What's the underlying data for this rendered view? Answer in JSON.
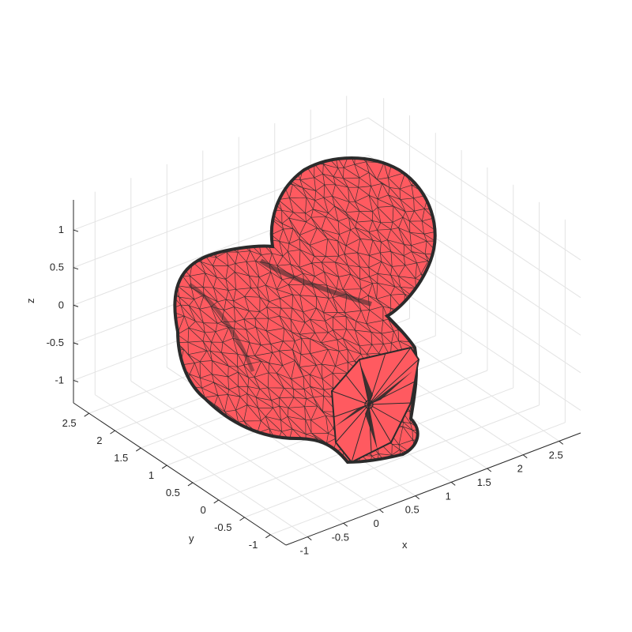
{
  "chart_data": {
    "type": "surface3d",
    "title": "",
    "xlabel": "x",
    "ylabel": "y",
    "zlabel": "z",
    "xlim": [
      -1.3,
      2.8
    ],
    "ylim": [
      -1.3,
      2.8
    ],
    "zlim": [
      -1.3,
      1.4
    ],
    "xticks": [
      -1,
      -0.5,
      0,
      0.5,
      1,
      1.5,
      2,
      2.5
    ],
    "yticks": [
      -1,
      -0.5,
      0,
      0.5,
      1,
      1.5,
      2,
      2.5
    ],
    "zticks": [
      -1,
      -0.5,
      0,
      0.5,
      1
    ],
    "xtick_labels": [
      "-1",
      "-0.5",
      "0",
      "0.5",
      "1",
      "1.5",
      "2",
      "2.5"
    ],
    "ytick_labels": [
      "-1",
      "-0.5",
      "0",
      "0.5",
      "1",
      "1.5",
      "2",
      "2.5"
    ],
    "ztick_labels": [
      "-1",
      "-0.5",
      "0",
      "0.5",
      "1"
    ],
    "grid": true,
    "face_color": "#ff5a60",
    "edge_color": "#2b2b2b",
    "view": {
      "azimuth": -37.5,
      "elevation": 30
    }
  }
}
